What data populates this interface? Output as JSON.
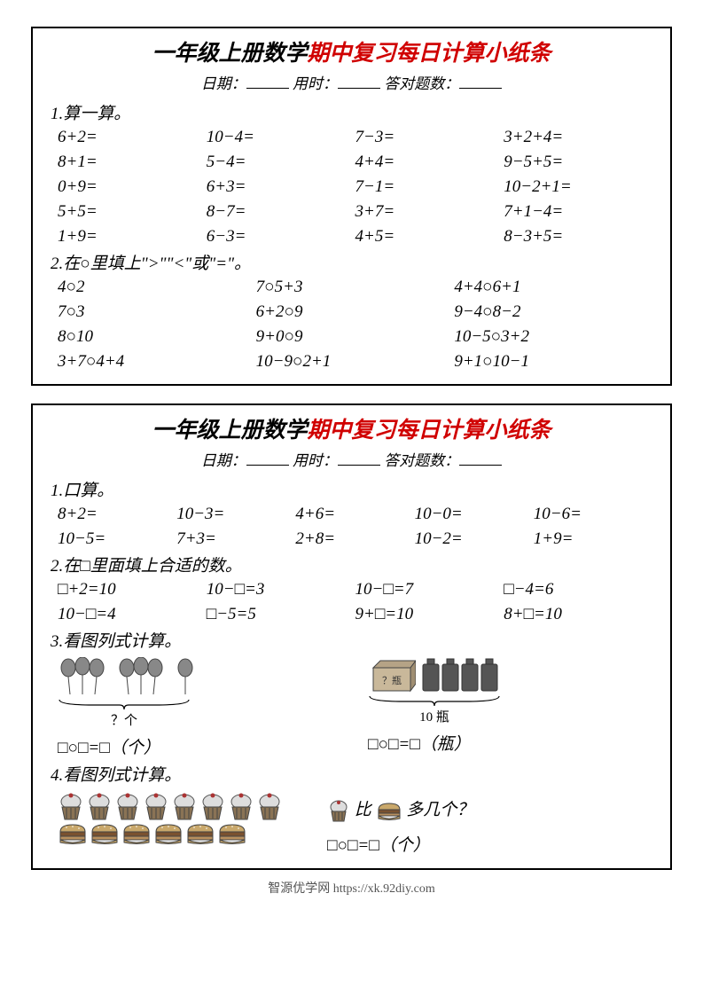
{
  "colors": {
    "red": "#d00000",
    "black": "#000000",
    "gray": "#555555",
    "brown": "#6b5a4a",
    "dark": "#3a3a3a"
  },
  "ws1": {
    "title_black": "一年级上册数学",
    "title_red": "期中复习每日计算小纸条",
    "meta_date": "日期：",
    "meta_time": "用时：",
    "meta_score": "答对题数：",
    "s1_heading": "1.算一算。",
    "s1_problems": [
      [
        "6+2=",
        "10−4=",
        "7−3=",
        "3+2+4="
      ],
      [
        "8+1=",
        "5−4=",
        "4+4=",
        "9−5+5="
      ],
      [
        "0+9=",
        "6+3=",
        "7−1=",
        "10−2+1="
      ],
      [
        "5+5=",
        "8−7=",
        "3+7=",
        "7+1−4="
      ],
      [
        "1+9=",
        "6−3=",
        "4+5=",
        "8−3+5="
      ]
    ],
    "s2_heading": "2.在○里填上\">\"\"<\"或\"=\"。",
    "s2_problems": [
      [
        "4○2",
        "7○5+3",
        "4+4○6+1"
      ],
      [
        "7○3",
        "6+2○9",
        "9−4○8−2"
      ],
      [
        "8○10",
        "9+0○9",
        "10−5○3+2"
      ],
      [
        "3+7○4+4",
        "10−9○2+1",
        "9+1○10−1"
      ]
    ]
  },
  "ws2": {
    "title_black": "一年级上册数学",
    "title_red": "期中复习每日计算小纸条",
    "meta_date": "日期：",
    "meta_time": "用时：",
    "meta_score": "答对题数：",
    "s1_heading": "1.口算。",
    "s1_problems": [
      [
        "8+2=",
        "10−3=",
        "4+6=",
        "10−0=",
        "10−6="
      ],
      [
        "10−5=",
        "7+3=",
        "2+8=",
        "10−2=",
        "1+9="
      ]
    ],
    "s2_heading": "2.在□里面填上合适的数。",
    "s2_problems": [
      [
        "□+2=10",
        "10−□=3",
        "10−□=7",
        "□−4=6"
      ],
      [
        "10−□=4",
        "□−5=5",
        "9+□=10",
        "8+□=10"
      ]
    ],
    "s3_heading": "3.看图列式计算。",
    "s3_left_label": "？个",
    "s3_left_eq": "□○□=□（个）",
    "s3_right_label": "10 瓶",
    "s3_right_box_label": "？瓶",
    "s3_right_eq": "□○□=□（瓶）",
    "s4_heading": "4.看图列式计算。",
    "s4_compare_prefix": "比",
    "s4_compare_suffix": "多几个？",
    "s4_eq": "□○□=□（个）",
    "cupcake_count": 8,
    "burger_count": 6
  },
  "footer": "智源优学网 https://xk.92diy.com"
}
